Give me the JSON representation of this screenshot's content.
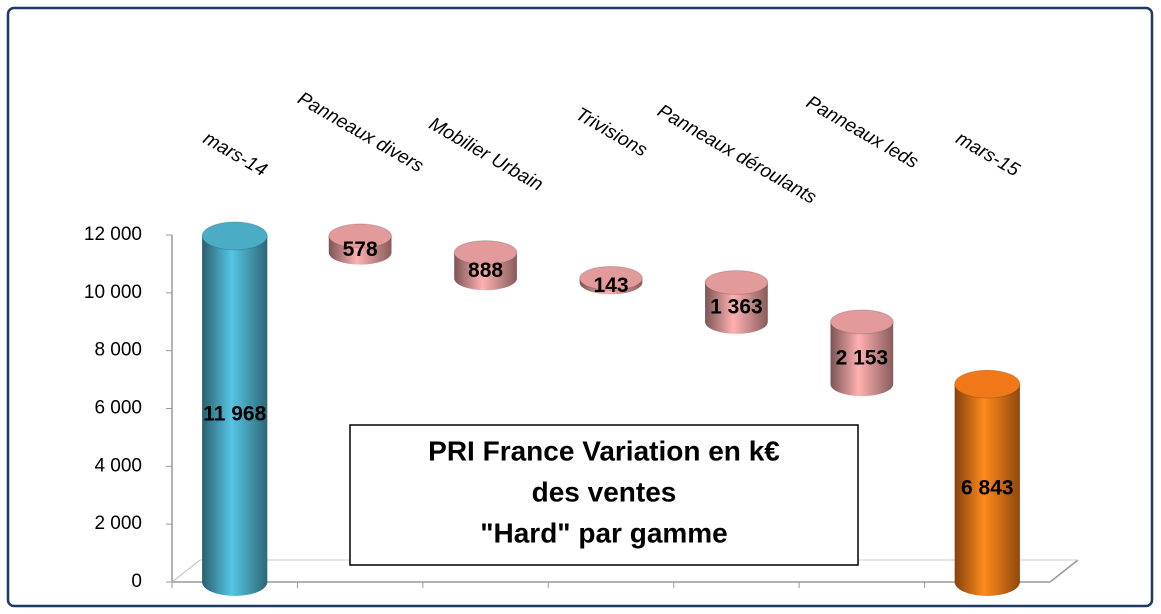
{
  "chart_data": {
    "type": "waterfall",
    "title": [
      "PRI France Variation en k€",
      "des ventes",
      "\"Hard\" par gamme"
    ],
    "categories": [
      "mars-14",
      "Panneaux divers",
      "Mobilier Urbain",
      "Trivisions",
      "Panneaux déroulants",
      "Panneaux leds",
      "mars-15"
    ],
    "values": [
      11968,
      578,
      888,
      143,
      1363,
      2153,
      6843
    ],
    "value_labels": [
      "11 968",
      "578",
      "888",
      "143",
      "1 363",
      "2 153",
      "6 843"
    ],
    "measure": [
      "total",
      "decrease",
      "decrease",
      "decrease",
      "decrease",
      "decrease",
      "total"
    ],
    "colors": [
      "#4bacc6",
      "#e29a9a",
      "#e29a9a",
      "#e29a9a",
      "#e29a9a",
      "#e29a9a",
      "#f07818"
    ],
    "ylim": [
      0,
      12000
    ],
    "yticks": [
      0,
      {
        "value": 2000,
        "label": "2 000"
      },
      {
        "value": 4000,
        "label": "4 000"
      },
      {
        "value": 6000,
        "label": "6 000"
      },
      {
        "value": 8000,
        "label": "8 000"
      },
      {
        "value": 10000,
        "label": "10 000"
      },
      {
        "value": 12000,
        "label": "12 000"
      }
    ]
  }
}
